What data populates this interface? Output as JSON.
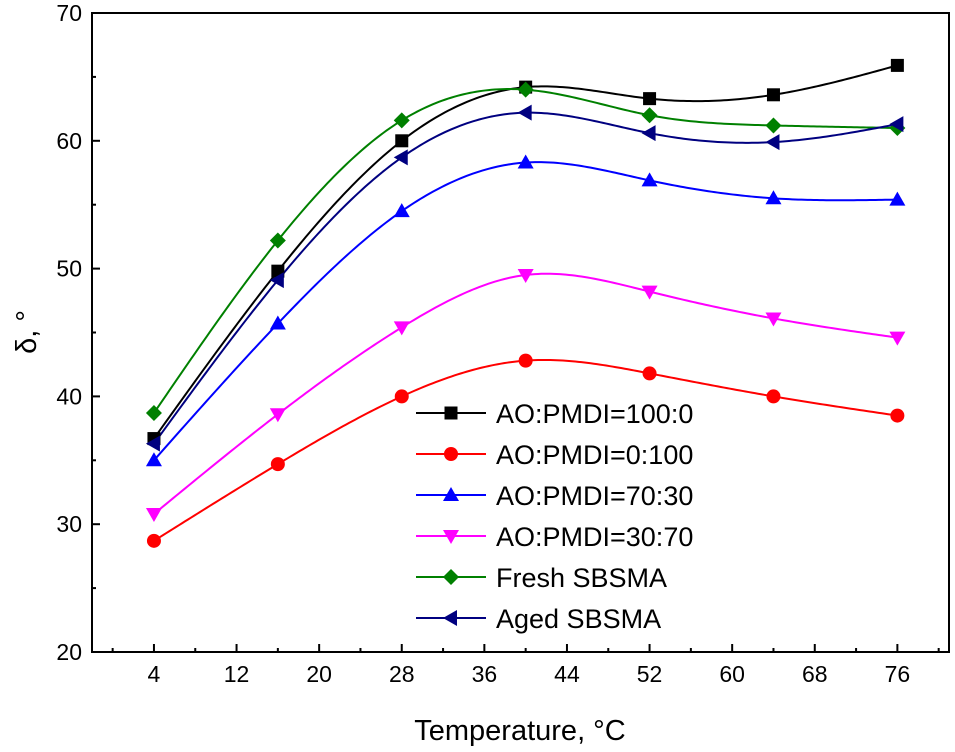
{
  "chart_data": {
    "type": "line",
    "title": "",
    "xlabel": "Temperature, °C",
    "ylabel": "δ, °",
    "xlim": [
      -2,
      81
    ],
    "ylim": [
      20,
      70
    ],
    "xticks": [
      4,
      12,
      20,
      28,
      36,
      44,
      52,
      60,
      68,
      76
    ],
    "yticks": [
      20,
      30,
      40,
      50,
      60,
      70
    ],
    "grid": false,
    "legend_position": "bottom-right",
    "x": [
      4,
      16,
      28,
      40,
      52,
      64,
      76
    ],
    "series": [
      {
        "name": "AO:PMDI=100:0",
        "marker": "square",
        "color": "#000000",
        "values": [
          36.7,
          49.8,
          60.0,
          64.2,
          63.3,
          63.6,
          65.9
        ]
      },
      {
        "name": "AO:PMDI=0:100",
        "marker": "circle",
        "color": "#ff0000",
        "values": [
          28.7,
          34.7,
          40.0,
          42.8,
          41.8,
          40.0,
          38.5
        ]
      },
      {
        "name": "AO:PMDI=70:30",
        "marker": "triangle-up",
        "color": "#0000ff",
        "values": [
          35.0,
          45.7,
          54.5,
          58.3,
          56.9,
          55.5,
          55.4
        ]
      },
      {
        "name": "AO:PMDI=30:70",
        "marker": "triangle-down",
        "color": "#ff00ff",
        "values": [
          30.8,
          38.6,
          45.4,
          49.5,
          48.2,
          46.1,
          44.6
        ]
      },
      {
        "name": "Fresh SBSMA",
        "marker": "diamond",
        "color": "#008000",
        "values": [
          38.7,
          52.2,
          61.6,
          64.0,
          62.0,
          61.2,
          61.0
        ]
      },
      {
        "name": "Aged SBSMA",
        "marker": "triangle-left",
        "color": "#000080",
        "values": [
          36.3,
          49.1,
          58.7,
          62.2,
          60.6,
          59.9,
          61.3
        ]
      }
    ]
  }
}
